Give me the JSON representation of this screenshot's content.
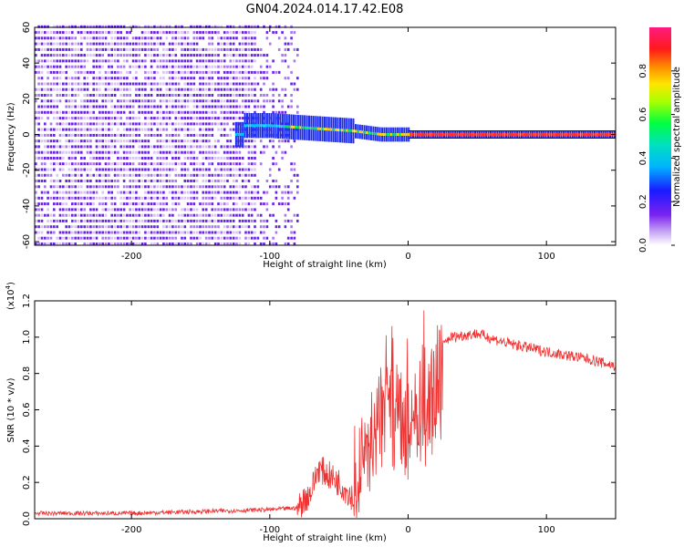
{
  "title": "GN04.2024.014.17.42.E08",
  "colors": {
    "line": "#ee3333",
    "spectro_purple": "#6a22e8",
    "spectro_light": "#d9c4f6"
  },
  "chart_data": [
    {
      "type": "heatmap",
      "name": "spectrogram",
      "xlabel": "Height of straight line (km)",
      "ylabel": "Frequency (Hz)",
      "xlim": [
        -270,
        150
      ],
      "ylim": [
        -62,
        60
      ],
      "xticks": [
        -200,
        -100,
        0,
        100
      ],
      "yticks": [
        60,
        40,
        20,
        0,
        -20,
        -40,
        -60
      ],
      "colorbar": {
        "label": "Normalized spectral amplitude",
        "range": [
          0,
          1
        ],
        "ticks": [
          "0.0",
          "0.2",
          "0.4",
          "0.6",
          "0.8"
        ],
        "colormap": "rainbow"
      },
      "noise_region_x": [
        -270,
        -80
      ],
      "signal_track": {
        "x": [
          -120,
          -100,
          -80,
          -60,
          -40,
          -20,
          0,
          20,
          60,
          100,
          150
        ],
        "y": [
          5,
          5,
          4,
          3,
          2,
          0,
          0,
          0,
          0,
          0,
          0
        ]
      },
      "grid": false
    },
    {
      "type": "line",
      "name": "snr",
      "xlabel": "Height of straight line (km)",
      "ylabel": "SNR (10 * v/v)",
      "yscale_label_base": "(x10",
      "yscale_label_exp": "4",
      "yscale_label_end": ")",
      "xlim": [
        -270,
        150
      ],
      "ylim": [
        0,
        1.2
      ],
      "xticks": [
        -200,
        -100,
        0,
        100
      ],
      "yticks": [
        "0.0",
        "0.2",
        "0.4",
        "0.6",
        "0.8",
        "1.0",
        "1.2"
      ],
      "series_color": "#ee3333",
      "envelope": {
        "x": [
          -270,
          -200,
          -100,
          -80,
          -70,
          -65,
          -50,
          -40,
          -30,
          -20,
          -15,
          -10,
          0,
          10,
          20,
          30,
          50,
          70,
          100,
          130,
          150
        ],
        "y": [
          0.03,
          0.03,
          0.05,
          0.06,
          0.15,
          0.28,
          0.2,
          0.12,
          0.45,
          0.7,
          0.95,
          0.7,
          0.6,
          0.75,
          0.9,
          1.0,
          1.02,
          0.97,
          0.92,
          0.88,
          0.84
        ]
      },
      "grid": false
    }
  ]
}
